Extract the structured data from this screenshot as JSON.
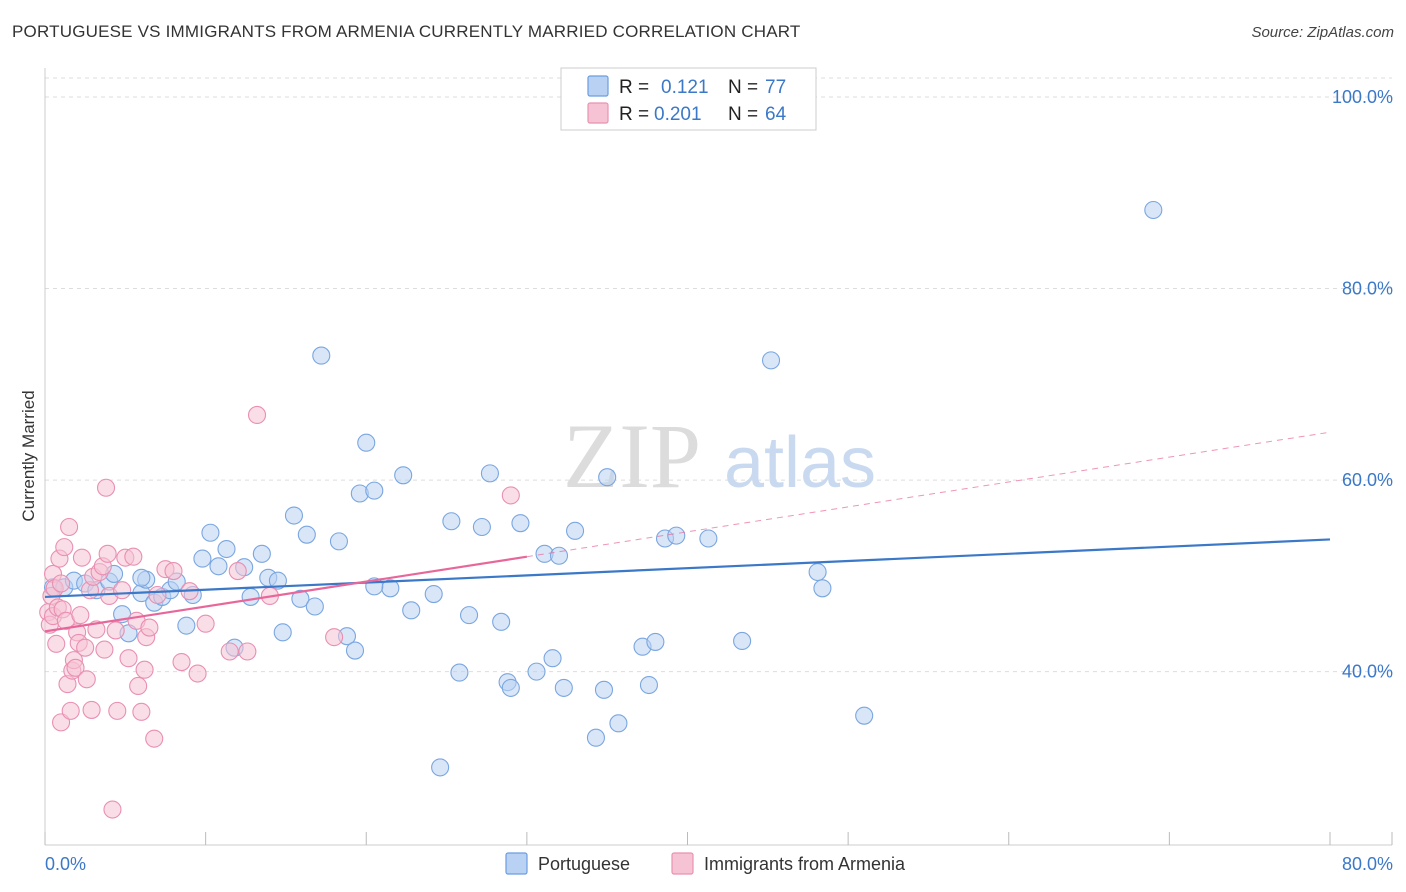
{
  "header": {
    "title": "PORTUGUESE VS IMMIGRANTS FROM ARMENIA CURRENTLY MARRIED CORRELATION CHART",
    "source": "Source: ZipAtlas.com"
  },
  "colors": {
    "blue": "#3b78c8",
    "blue_fill": "#b9d1f3",
    "pink": "#e8679a",
    "pink_fill": "#f6c3d4",
    "grid": "#dddddd"
  },
  "watermark": {
    "zip": "ZIP",
    "atlas": "atlas"
  },
  "legend": {
    "r_label": "R =",
    "n_label": "N =",
    "rows": [
      {
        "r": "0.121",
        "n": "77"
      },
      {
        "r": "0.201",
        "n": "64"
      }
    ]
  },
  "chart_data": {
    "type": "scatter",
    "ylabel": "Currently Married",
    "xlim": [
      0,
      80
    ],
    "ylim": [
      22,
      102
    ],
    "y_ticks": [
      {
        "value": 100,
        "label": "100.0%"
      },
      {
        "value": 80,
        "label": "80.0%"
      },
      {
        "value": 60,
        "label": "60.0%"
      },
      {
        "value": 40,
        "label": "40.0%"
      }
    ],
    "x_tick_labels": [
      {
        "value": 0,
        "label": "0.0%"
      },
      {
        "value": 80,
        "label": "80.0%"
      }
    ],
    "series": [
      {
        "name": "Portuguese",
        "trend": {
          "x0": 0,
          "y0": 47.8,
          "x1": 80,
          "y1": 53.8,
          "solid_until": 80
        },
        "points": [
          [
            0.5,
            48.8
          ],
          [
            1.2,
            48.8
          ],
          [
            1.8,
            49.5
          ],
          [
            2.5,
            49.2
          ],
          [
            3.2,
            48.5
          ],
          [
            4.0,
            49.4
          ],
          [
            4.3,
            50.2
          ],
          [
            4.8,
            46.0
          ],
          [
            5.2,
            44.0
          ],
          [
            6.0,
            48.2
          ],
          [
            6.3,
            49.6
          ],
          [
            6.8,
            47.2
          ],
          [
            7.3,
            47.8
          ],
          [
            7.8,
            48.5
          ],
          [
            8.2,
            49.4
          ],
          [
            8.8,
            44.8
          ],
          [
            9.2,
            48.0
          ],
          [
            9.8,
            51.8
          ],
          [
            10.3,
            54.5
          ],
          [
            10.8,
            51.0
          ],
          [
            11.3,
            52.8
          ],
          [
            11.8,
            42.5
          ],
          [
            12.4,
            50.9
          ],
          [
            12.8,
            47.8
          ],
          [
            13.5,
            52.3
          ],
          [
            13.9,
            49.8
          ],
          [
            14.5,
            49.5
          ],
          [
            14.8,
            44.1
          ],
          [
            15.5,
            56.3
          ],
          [
            15.9,
            47.6
          ],
          [
            16.3,
            54.3
          ],
          [
            16.8,
            46.8
          ],
          [
            17.2,
            73.0
          ],
          [
            18.3,
            53.6
          ],
          [
            18.8,
            43.7
          ],
          [
            19.3,
            42.2
          ],
          [
            19.6,
            58.6
          ],
          [
            20.0,
            63.9
          ],
          [
            20.5,
            58.9
          ],
          [
            21.5,
            48.7
          ],
          [
            22.3,
            60.5
          ],
          [
            22.8,
            46.4
          ],
          [
            24.2,
            48.1
          ],
          [
            24.6,
            30.0
          ],
          [
            25.3,
            55.7
          ],
          [
            25.8,
            39.9
          ],
          [
            26.4,
            45.9
          ],
          [
            27.2,
            55.1
          ],
          [
            27.7,
            60.7
          ],
          [
            28.4,
            45.2
          ],
          [
            28.8,
            38.9
          ],
          [
            29.0,
            38.3
          ],
          [
            29.6,
            55.5
          ],
          [
            30.6,
            40.0
          ],
          [
            31.1,
            52.3
          ],
          [
            31.6,
            41.4
          ],
          [
            32.0,
            52.1
          ],
          [
            32.3,
            38.3
          ],
          [
            33.0,
            54.7
          ],
          [
            34.3,
            33.1
          ],
          [
            34.8,
            38.1
          ],
          [
            35.0,
            60.3
          ],
          [
            35.7,
            34.6
          ],
          [
            37.2,
            42.6
          ],
          [
            37.6,
            38.6
          ],
          [
            38.0,
            43.1
          ],
          [
            38.6,
            53.9
          ],
          [
            39.3,
            54.2
          ],
          [
            41.3,
            53.9
          ],
          [
            43.4,
            43.2
          ],
          [
            45.2,
            72.5
          ],
          [
            48.1,
            50.4
          ],
          [
            48.4,
            48.7
          ],
          [
            51.0,
            35.4
          ],
          [
            69.0,
            88.2
          ],
          [
            6.0,
            49.8
          ],
          [
            20.5,
            48.9
          ]
        ]
      },
      {
        "name": "Immigrants from Armenia",
        "trend": {
          "x0": 0,
          "y0": 44.2,
          "x1": 80,
          "y1": 65.0,
          "solid_until": 30
        },
        "points": [
          [
            0.2,
            46.2
          ],
          [
            0.3,
            44.9
          ],
          [
            0.4,
            47.9
          ],
          [
            0.5,
            50.2
          ],
          [
            0.5,
            45.8
          ],
          [
            0.6,
            48.7
          ],
          [
            0.7,
            42.9
          ],
          [
            0.8,
            46.7
          ],
          [
            0.9,
            51.8
          ],
          [
            1.0,
            49.2
          ],
          [
            1.0,
            34.7
          ],
          [
            1.1,
            46.5
          ],
          [
            1.2,
            53.0
          ],
          [
            1.3,
            45.3
          ],
          [
            1.4,
            38.7
          ],
          [
            1.5,
            55.1
          ],
          [
            1.6,
            35.9
          ],
          [
            1.7,
            40.1
          ],
          [
            1.8,
            41.2
          ],
          [
            1.9,
            40.4
          ],
          [
            2.0,
            44.1
          ],
          [
            2.1,
            43.0
          ],
          [
            2.2,
            45.9
          ],
          [
            2.3,
            51.9
          ],
          [
            2.5,
            42.5
          ],
          [
            2.6,
            39.2
          ],
          [
            2.8,
            48.5
          ],
          [
            2.9,
            36.0
          ],
          [
            3.0,
            49.9
          ],
          [
            3.2,
            44.4
          ],
          [
            3.4,
            50.4
          ],
          [
            3.6,
            51.0
          ],
          [
            3.7,
            42.3
          ],
          [
            3.8,
            59.2
          ],
          [
            3.9,
            52.3
          ],
          [
            4.0,
            47.9
          ],
          [
            4.2,
            25.6
          ],
          [
            4.4,
            44.3
          ],
          [
            4.5,
            35.9
          ],
          [
            4.8,
            48.5
          ],
          [
            5.0,
            51.9
          ],
          [
            5.2,
            41.4
          ],
          [
            5.5,
            52.0
          ],
          [
            5.7,
            45.3
          ],
          [
            5.8,
            38.5
          ],
          [
            6.0,
            35.8
          ],
          [
            6.2,
            40.2
          ],
          [
            6.3,
            43.6
          ],
          [
            6.5,
            44.6
          ],
          [
            6.8,
            33.0
          ],
          [
            7.0,
            48.0
          ],
          [
            7.5,
            50.7
          ],
          [
            8.0,
            50.5
          ],
          [
            8.5,
            41.0
          ],
          [
            9.0,
            48.4
          ],
          [
            9.5,
            39.8
          ],
          [
            10.0,
            45.0
          ],
          [
            11.5,
            42.1
          ],
          [
            12.0,
            50.5
          ],
          [
            12.6,
            42.1
          ],
          [
            13.2,
            66.8
          ],
          [
            14.0,
            47.9
          ],
          [
            18.0,
            43.6
          ],
          [
            29.0,
            58.4
          ]
        ]
      }
    ]
  },
  "bottom_legend": [
    {
      "label": "Portuguese"
    },
    {
      "label": "Immigrants from Armenia"
    }
  ]
}
